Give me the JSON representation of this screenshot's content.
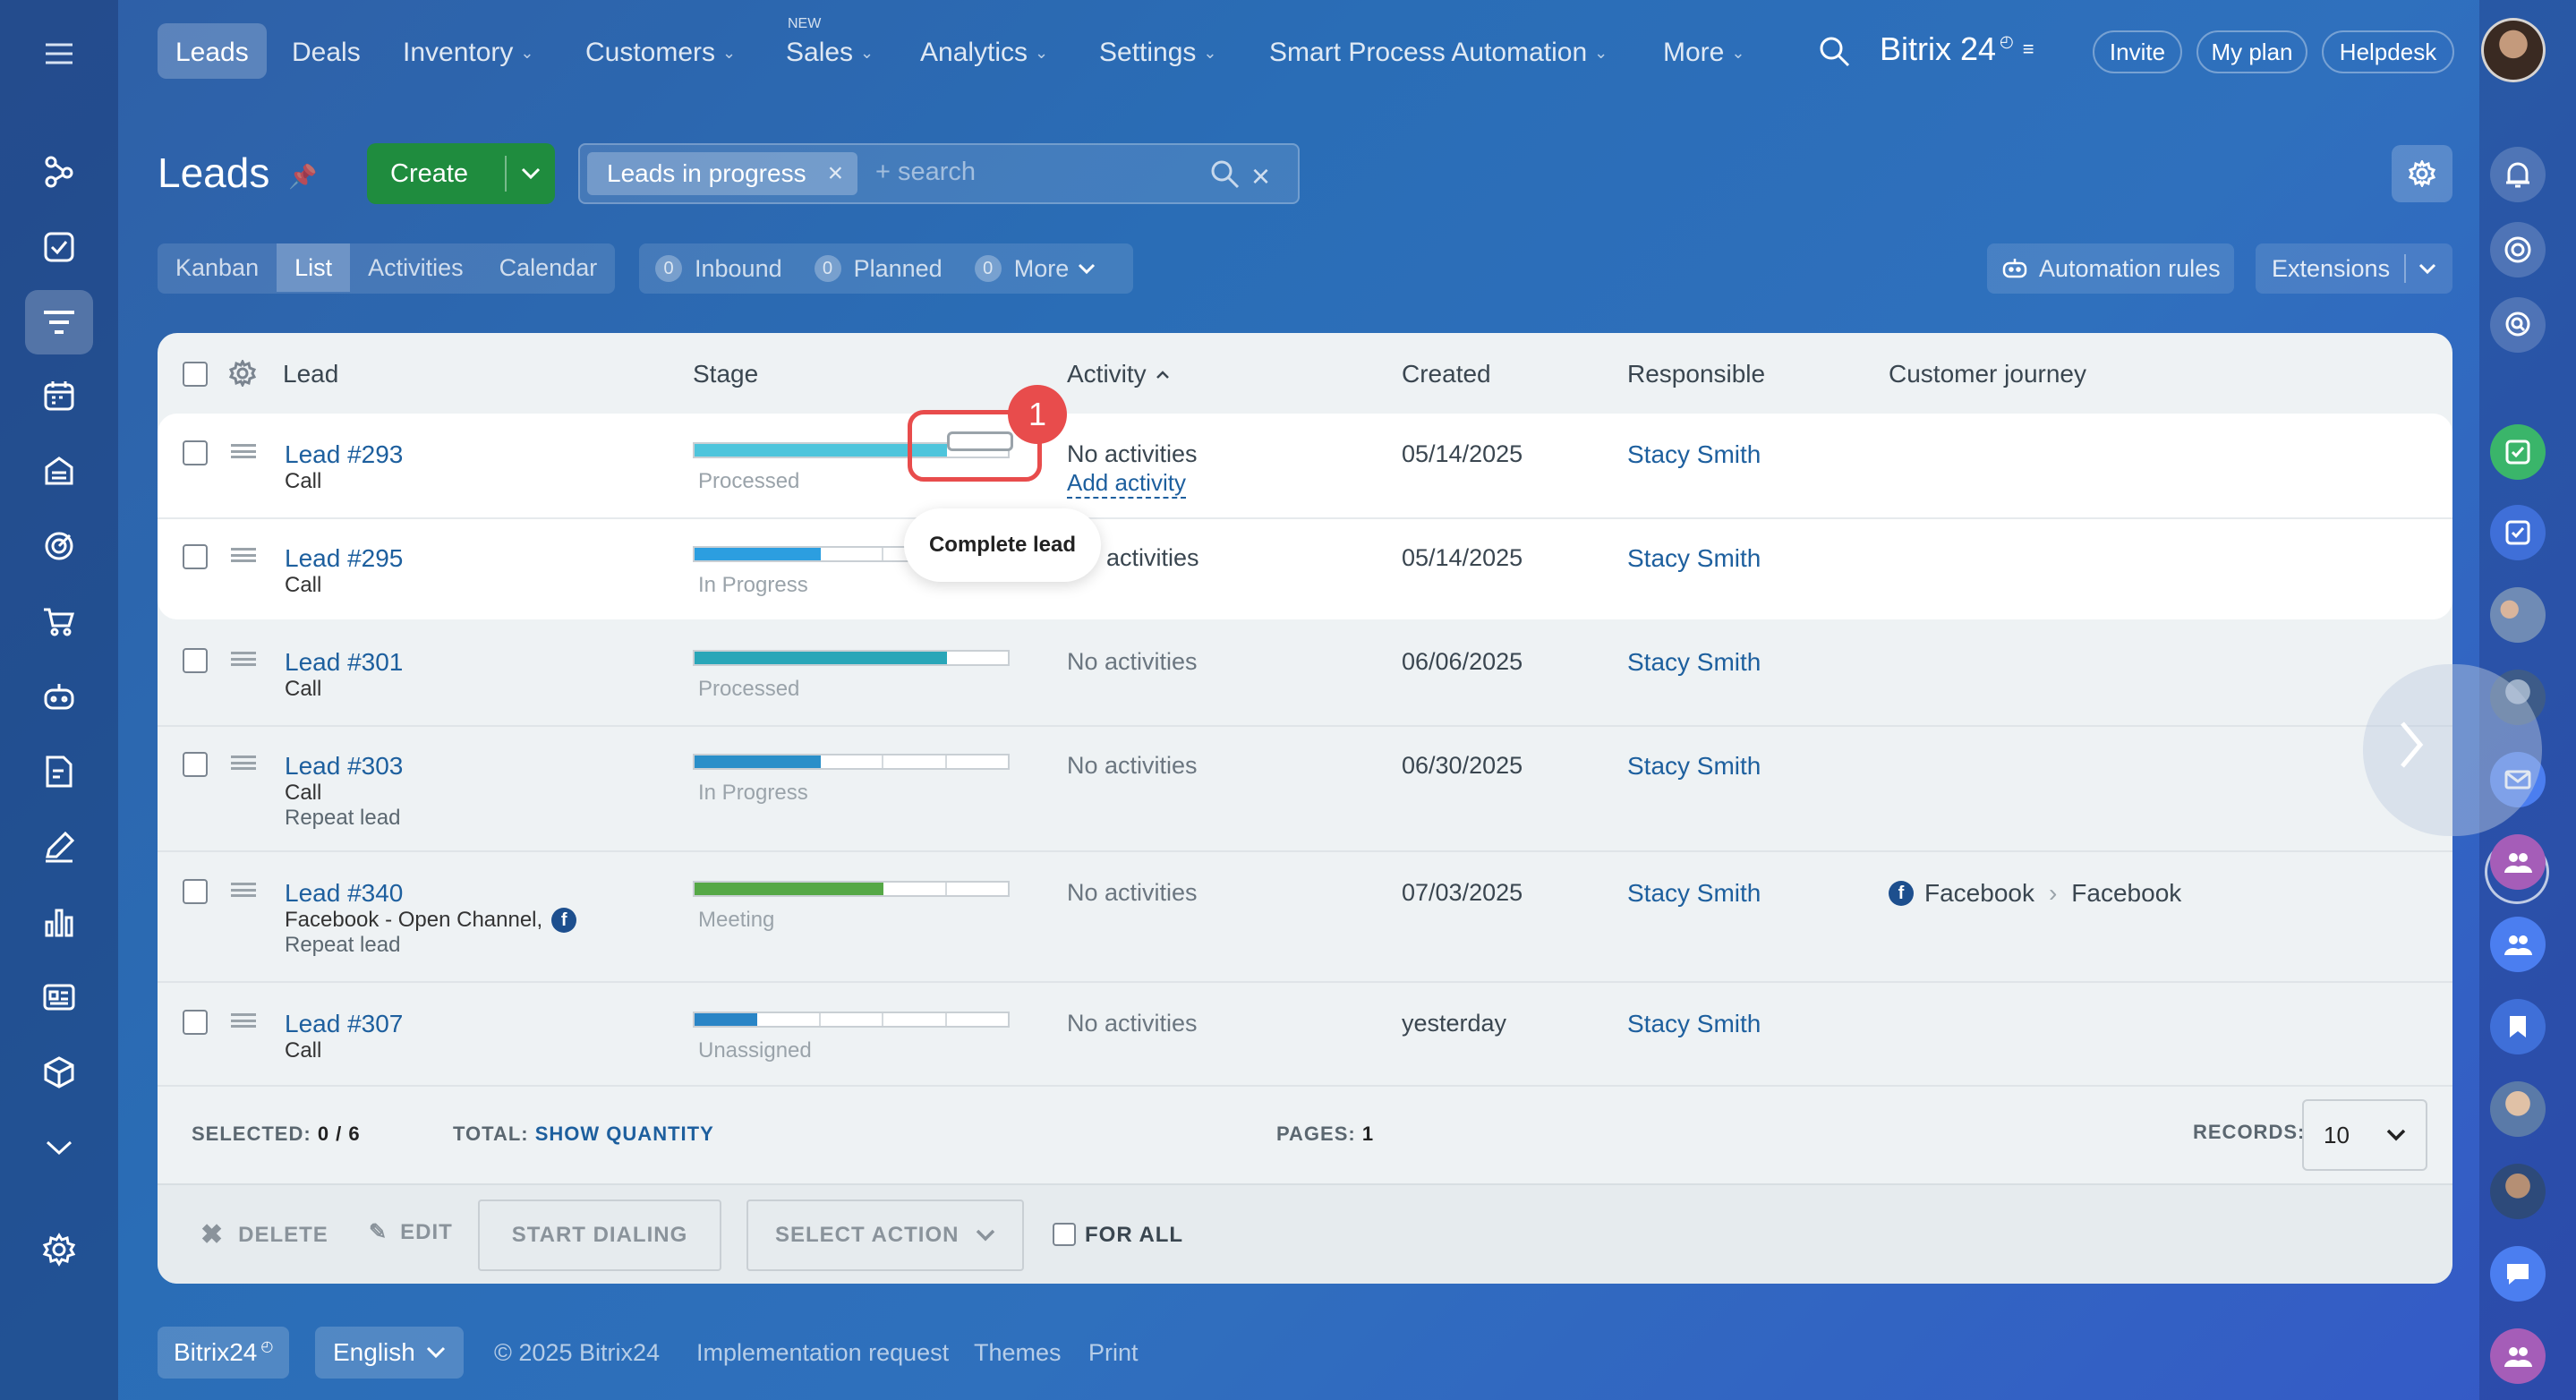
{
  "nav": {
    "items": [
      {
        "label": "Leads",
        "active": true
      },
      {
        "label": "Deals"
      },
      {
        "label": "Inventory",
        "chev": true
      },
      {
        "label": "Customers",
        "chev": true
      },
      {
        "label": "Sales",
        "chev": true,
        "badge": "NEW"
      },
      {
        "label": "Analytics",
        "chev": true
      },
      {
        "label": "Settings",
        "chev": true
      },
      {
        "label": "Smart Process Automation",
        "chev": true
      },
      {
        "label": "More",
        "chev": true
      }
    ],
    "brand": "Bitrix 24",
    "invite": "Invite",
    "my_plan": "My plan",
    "helpdesk": "Helpdesk"
  },
  "page": {
    "title": "Leads",
    "create": "Create",
    "filter_chip": "Leads in progress",
    "search_placeholder": "+ search"
  },
  "views": [
    "Kanban",
    "List",
    "Activities",
    "Calendar"
  ],
  "counters": [
    {
      "count": "0",
      "label": "Inbound"
    },
    {
      "count": "0",
      "label": "Planned"
    },
    {
      "count": "0",
      "label": "More"
    }
  ],
  "automation_rules": "Automation rules",
  "extensions": "Extensions",
  "table": {
    "headers": {
      "lead": "Lead",
      "stage": "Stage",
      "activity": "Activity",
      "created": "Created",
      "responsible": "Responsible",
      "journey": "Customer journey"
    },
    "rows": [
      {
        "lead": "Lead #293",
        "line2": "Call",
        "line3": "",
        "stage": "Processed",
        "color": "#4ec5dc",
        "filled": 4,
        "activity": "No activities",
        "add_activity": "Add activity",
        "created": "05/14/2025",
        "responsible": "Stacy Smith",
        "journey_from": "",
        "journey_to": ""
      },
      {
        "lead": "Lead #295",
        "line2": "Call",
        "line3": "",
        "stage": "In Progress",
        "color": "#2c9ee0",
        "filled": 2,
        "activity": "activities",
        "add_activity": "",
        "created": "05/14/2025",
        "responsible": "Stacy Smith",
        "journey_from": "",
        "journey_to": ""
      },
      {
        "lead": "Lead #301",
        "line2": "Call",
        "line3": "",
        "stage": "Processed",
        "color": "#29a6b8",
        "filled": 4,
        "activity": "No activities",
        "add_activity": "",
        "created": "06/06/2025",
        "responsible": "Stacy Smith",
        "journey_from": "",
        "journey_to": ""
      },
      {
        "lead": "Lead #303",
        "line2": "Call",
        "line3": "Repeat lead",
        "stage": "In Progress",
        "color": "#2a8fc9",
        "filled": 2,
        "activity": "No activities",
        "add_activity": "",
        "created": "06/30/2025",
        "responsible": "Stacy Smith",
        "journey_from": "",
        "journey_to": ""
      },
      {
        "lead": "Lead #340",
        "line2": "Facebook - Open Channel,",
        "line3": "Repeat lead",
        "stage": "Meeting",
        "color": "#55a846",
        "filled": 3,
        "activity": "No activities",
        "add_activity": "",
        "created": "07/03/2025",
        "responsible": "Stacy Smith",
        "journey_from": "Facebook",
        "journey_to": "Facebook"
      },
      {
        "lead": "Lead #307",
        "line2": "Call",
        "line3": "",
        "stage": "Unassigned",
        "color": "#2a85c6",
        "filled": 1,
        "activity": "No activities",
        "add_activity": "",
        "created": "yesterday",
        "responsible": "Stacy Smith",
        "journey_from": "",
        "journey_to": ""
      }
    ],
    "tooltip": "Complete lead",
    "step_marker": "1"
  },
  "summary": {
    "selected_label": "SELECTED:",
    "selected_value": "0 / 6",
    "total_label": "TOTAL:",
    "total_value": "SHOW QUANTITY",
    "pages_label": "PAGES:",
    "pages_value": "1",
    "records_label": "RECORDS:",
    "records_value": "10"
  },
  "actions": {
    "delete": "DELETE",
    "edit": "EDIT",
    "start_dialing": "START DIALING",
    "select_action": "SELECT ACTION",
    "for_all": "FOR ALL"
  },
  "footer": {
    "brand": "Bitrix24",
    "language": "English",
    "copyright": "© 2025 Bitrix24",
    "implementation": "Implementation request",
    "themes": "Themes",
    "print": "Print"
  },
  "colors": {
    "accent_green": "#1f8c3e",
    "link": "#1d5f9e",
    "marker_red": "#e84c4c"
  }
}
